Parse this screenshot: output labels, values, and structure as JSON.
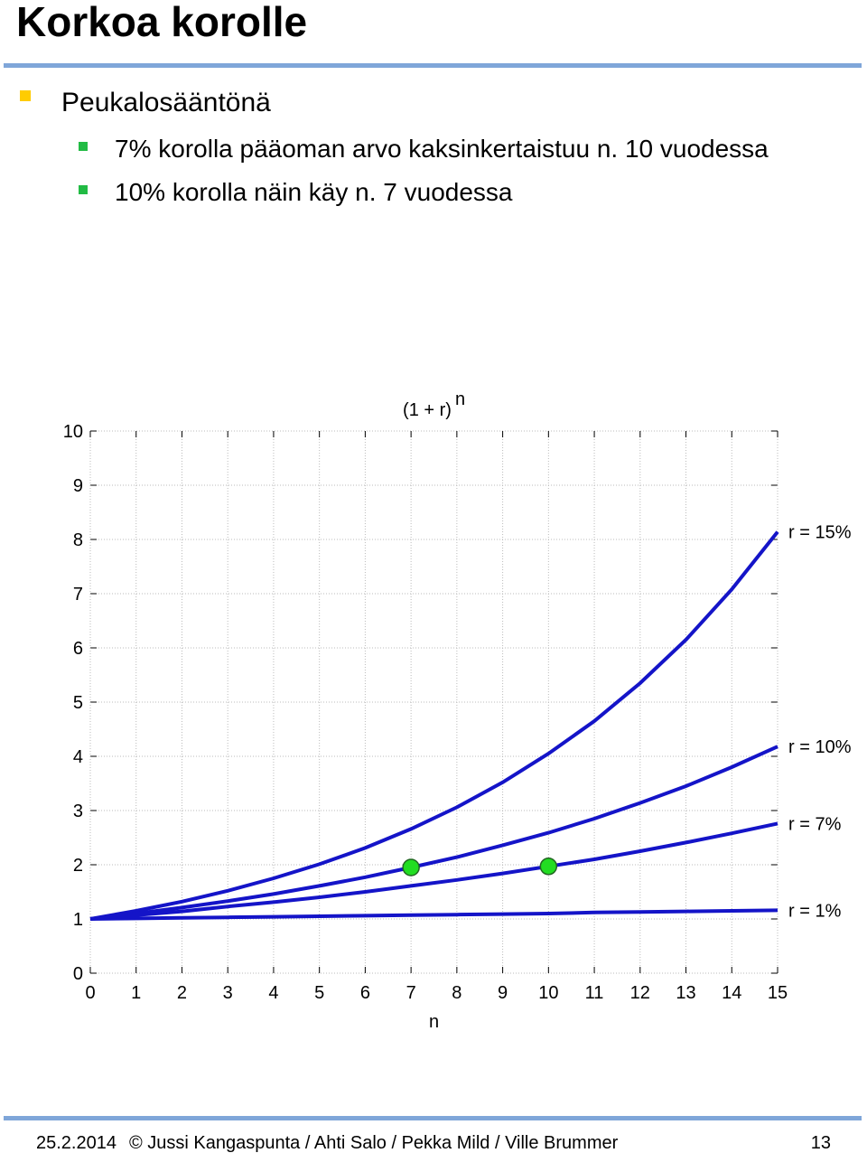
{
  "header": {
    "title": "Korkoa korolle"
  },
  "bullets": [
    {
      "text": "Peukalosääntönä",
      "children": [
        "7% korolla pääoman arvo kaksinkertaistuu n. 10 vuodessa",
        "10% korolla näin käy n. 7 vuodessa"
      ]
    }
  ],
  "chart_data": {
    "type": "line",
    "title": "(1 + r)",
    "title_exponent": "n",
    "x_label": "n",
    "x": [
      0,
      1,
      2,
      3,
      4,
      5,
      6,
      7,
      8,
      9,
      10,
      11,
      12,
      13,
      14,
      15
    ],
    "series": [
      {
        "name": "r = 15%",
        "color": "#1414c8",
        "values": [
          1,
          1.15,
          1.32,
          1.52,
          1.75,
          2.01,
          2.31,
          2.66,
          3.06,
          3.52,
          4.05,
          4.65,
          5.35,
          6.15,
          7.08,
          8.14
        ]
      },
      {
        "name": "r = 10%",
        "color": "#1414c8",
        "values": [
          1,
          1.1,
          1.21,
          1.33,
          1.46,
          1.61,
          1.77,
          1.95,
          2.14,
          2.36,
          2.59,
          2.85,
          3.14,
          3.45,
          3.8,
          4.18
        ]
      },
      {
        "name": "r = 7%",
        "color": "#1414c8",
        "values": [
          1,
          1.07,
          1.14,
          1.23,
          1.31,
          1.4,
          1.5,
          1.61,
          1.72,
          1.84,
          1.97,
          2.1,
          2.25,
          2.41,
          2.58,
          2.76
        ]
      },
      {
        "name": "r = 1%",
        "color": "#1414c8",
        "values": [
          1,
          1.01,
          1.02,
          1.03,
          1.04,
          1.05,
          1.06,
          1.07,
          1.08,
          1.09,
          1.1,
          1.12,
          1.13,
          1.14,
          1.15,
          1.16
        ]
      }
    ],
    "markers": {
      "color": "#22dd22",
      "x": [
        7,
        10
      ],
      "values": [
        1.95,
        1.97
      ]
    },
    "xlim": [
      0,
      15
    ],
    "ylim": [
      0,
      10
    ],
    "xticks": [
      0,
      1,
      2,
      3,
      4,
      5,
      6,
      7,
      8,
      9,
      10,
      11,
      12,
      13,
      14,
      15
    ],
    "yticks": [
      0,
      1,
      2,
      3,
      4,
      5,
      6,
      7,
      8,
      9,
      10
    ],
    "grid": true
  },
  "footer": {
    "date": "25.2.2014",
    "authors": "© Jussi Kangaspunta / Ahti Salo / Pekka Mild / Ville Brummer",
    "page": "13"
  }
}
